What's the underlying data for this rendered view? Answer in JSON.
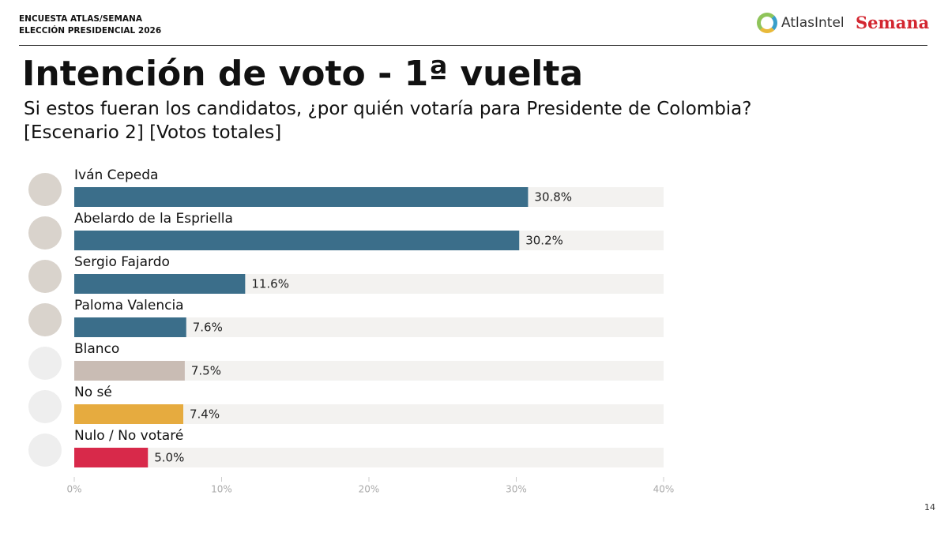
{
  "header": {
    "survey": "ENCUESTA ATLAS/SEMANA",
    "election": "ELECCIÓN PRESIDENCIAL 2026",
    "brand": "AtlasIntel",
    "partner": "Semana"
  },
  "page_number": "14",
  "chart_data": {
    "type": "barh",
    "title": "Intención de voto - 1ª vuelta",
    "subtitle": [
      "Si estos fueran los candidatos, ¿por quién votaría para Presidente de Colombia?",
      "[Escenario 2] [Votos totales]"
    ],
    "categories": [
      "Iván Cepeda",
      "Abelardo de la Espriella",
      "Sergio Fajardo",
      "Paloma Valencia",
      "Blanco",
      "No sé",
      "Nulo / No votaré"
    ],
    "values": [
      30.8,
      30.2,
      11.6,
      7.6,
      7.5,
      7.4,
      5.0
    ],
    "value_labels": [
      "30.8%",
      "30.2%",
      "11.6%",
      "7.6%",
      "7.5%",
      "7.4%",
      "5.0%"
    ],
    "colors": [
      "#3b6e8a",
      "#3b6e8a",
      "#3b6e8a",
      "#3b6e8a",
      "#c9bcb4",
      "#e6ab3f",
      "#d8294a"
    ],
    "xlim": [
      0,
      40
    ],
    "xticks": [
      {
        "value": 0,
        "label": "0%"
      },
      {
        "value": 10,
        "label": "10%"
      },
      {
        "value": 20,
        "label": "20%"
      },
      {
        "value": 30,
        "label": "30%"
      },
      {
        "value": 40,
        "label": "40%"
      }
    ]
  }
}
